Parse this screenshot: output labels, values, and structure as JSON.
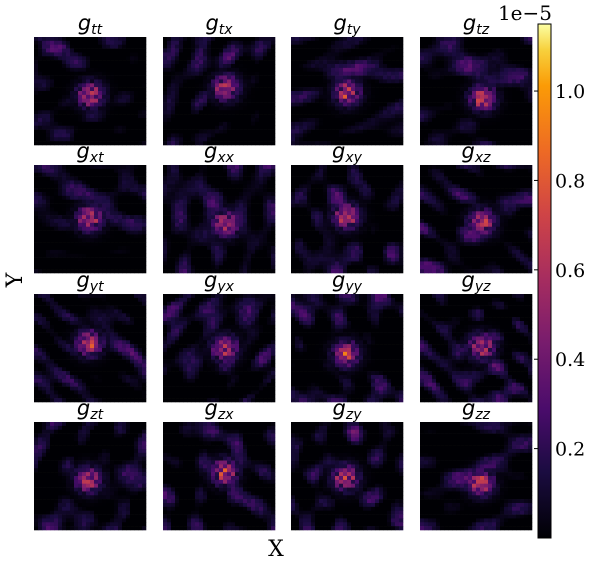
{
  "chart_data": {
    "type": "heatmap",
    "grid": {
      "rows": 4,
      "cols": 4
    },
    "components": [
      "t",
      "x",
      "y",
      "z"
    ],
    "panels": [
      {
        "base": "g",
        "sub": "tt"
      },
      {
        "base": "g",
        "sub": "tx"
      },
      {
        "base": "g",
        "sub": "ty"
      },
      {
        "base": "g",
        "sub": "tz"
      },
      {
        "base": "g",
        "sub": "xt"
      },
      {
        "base": "g",
        "sub": "xx"
      },
      {
        "base": "g",
        "sub": "xy"
      },
      {
        "base": "g",
        "sub": "xz"
      },
      {
        "base": "g",
        "sub": "yt"
      },
      {
        "base": "g",
        "sub": "yx"
      },
      {
        "base": "g",
        "sub": "yy"
      },
      {
        "base": "g",
        "sub": "yz"
      },
      {
        "base": "g",
        "sub": "zt"
      },
      {
        "base": "g",
        "sub": "zx"
      },
      {
        "base": "g",
        "sub": "zy"
      },
      {
        "base": "g",
        "sub": "zz"
      }
    ],
    "xlabel": "X",
    "ylabel": "Y",
    "colorbar": {
      "colormap": "inferno",
      "range": [
        0.0,
        1.15
      ],
      "scale_label": "1e−5",
      "ticks": [
        0.2,
        0.4,
        0.6,
        0.8,
        1.0
      ],
      "tick_labels": [
        "0.2",
        "0.4",
        "0.6",
        "0.8",
        "1.0"
      ]
    },
    "colors": {
      "low": "#000004",
      "mid": "#bc3754",
      "high": "#fcffa4"
    }
  }
}
